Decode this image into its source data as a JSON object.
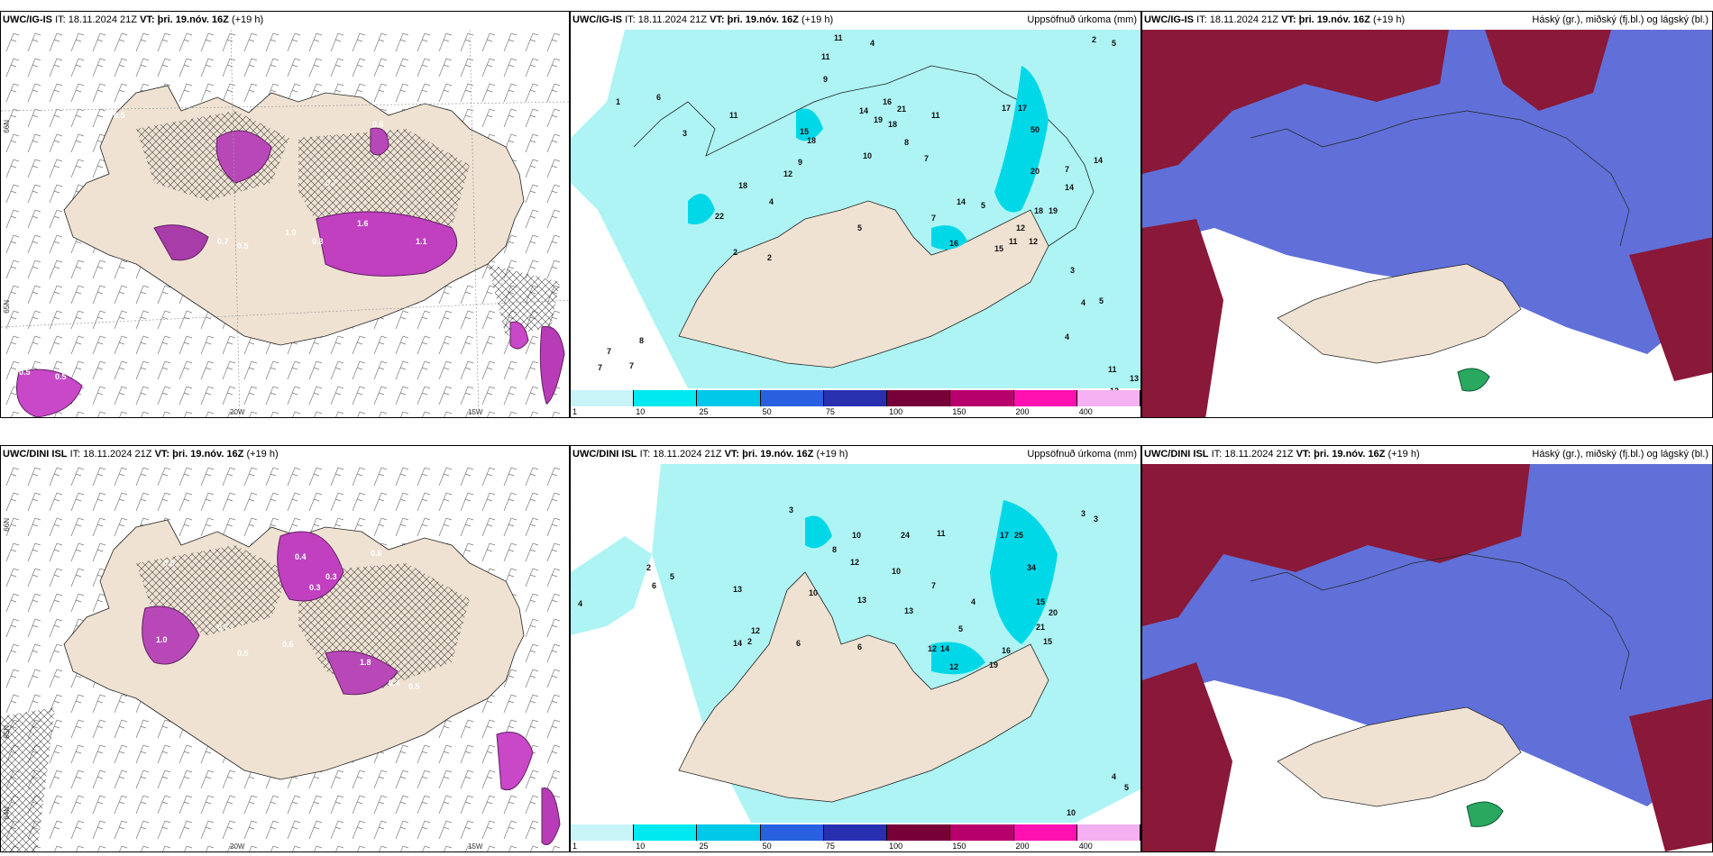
{
  "panels": {
    "top_left": {
      "model": "UWC/IG-IS",
      "it_label": "IT:",
      "it_value": "18.11.2024 21Z",
      "vt_label": "VT:",
      "vt_value": "þri. 19.nóv. 16Z",
      "lead": "(+19 h)"
    },
    "top_mid": {
      "model": "UWC/IG-IS",
      "it_label": "IT:",
      "it_value": "18.11.2024 21Z",
      "vt_label": "VT:",
      "vt_value": "þri. 19.nóv. 16Z",
      "lead": "(+19 h)",
      "right_title": "Uppsöfnuð úrkoma (mm)"
    },
    "top_right": {
      "model": "UWC/IG-IS",
      "it_label": "IT:",
      "it_value": "18.11.2024 21Z",
      "vt_label": "VT:",
      "vt_value": "þri. 19.nóv. 16Z",
      "lead": "(+19 h)",
      "right_title": "Háský (gr.), miðský (fj.bl.) og lágský (bl.)"
    },
    "bottom_left": {
      "model": "UWC/DINI ISL",
      "it_label": "IT:",
      "it_value": "18.11.2024 21Z",
      "vt_label": "VT:",
      "vt_value": "þri. 19.nóv. 16Z",
      "lead": "(+19 h)"
    },
    "bottom_mid": {
      "model": "UWC/DINI ISL",
      "it_label": "IT:",
      "it_value": "18.11.2024 21Z",
      "vt_label": "VT:",
      "vt_value": "þri. 19.nóv. 16Z",
      "lead": "(+19 h)",
      "right_title": "Uppsöfnuð úrkoma (mm)"
    },
    "bottom_right": {
      "model": "UWC/DINI ISL",
      "it_label": "IT:",
      "it_value": "18.11.2024 21Z",
      "vt_label": "VT:",
      "vt_value": "þri. 19.nóv. 16Z",
      "lead": "(+19 h)",
      "right_title": "Háský (gr.), miðský (fj.bl.) og lágský (bl.)"
    }
  },
  "axes": {
    "lon_20": "20W",
    "lon_15": "15W",
    "lat_66": "66N",
    "lat_65": "65N",
    "lat_64": "64N"
  },
  "legend": {
    "ticks": [
      "1",
      "10",
      "25",
      "50",
      "75",
      "100",
      "150",
      "200",
      "400"
    ],
    "colors": [
      "#c8f4f8",
      "#00e8f0",
      "#00c8e8",
      "#2860e0",
      "#2830b0",
      "#780038",
      "#b8006c",
      "#ff10b0",
      "#f4b0f0"
    ]
  },
  "map_values": {
    "top_left_precip": [
      "0.5",
      "0.7",
      "0.6",
      "1.0",
      "0.3",
      "0.5",
      "1.6",
      "1.1",
      "0.7",
      "0.5",
      "0.5"
    ],
    "top_mid_totals": [
      "11",
      "4",
      "11",
      "2",
      "5",
      "9",
      "1",
      "6",
      "11",
      "16",
      "14",
      "19",
      "18",
      "21",
      "11",
      "17",
      "17",
      "3",
      "15",
      "18",
      "10",
      "7",
      "50",
      "8",
      "12",
      "9",
      "14",
      "18",
      "7",
      "20",
      "14",
      "22",
      "4",
      "5",
      "7",
      "14",
      "5",
      "12",
      "18",
      "19",
      "16",
      "15",
      "2",
      "2",
      "11",
      "12",
      "8",
      "7",
      "7",
      "7",
      "3",
      "4",
      "5",
      "4",
      "11",
      "13",
      "12"
    ],
    "bottom_left_precip": [
      "0.6",
      "0.4",
      "0.3",
      "0.5",
      "1.0",
      "0.7",
      "0.6",
      "1.8",
      "0.5",
      "0.4",
      "0.5",
      "0.3"
    ],
    "bottom_mid_totals": [
      "2",
      "5",
      "6",
      "4",
      "3",
      "10",
      "8",
      "12",
      "24",
      "11",
      "17",
      "25",
      "34",
      "13",
      "12",
      "10",
      "13",
      "10",
      "13",
      "14",
      "6",
      "12",
      "15",
      "20",
      "21",
      "15",
      "19",
      "16",
      "14",
      "12",
      "7",
      "6",
      "5",
      "4",
      "2",
      "3",
      "3",
      "4",
      "5",
      "10"
    ]
  }
}
